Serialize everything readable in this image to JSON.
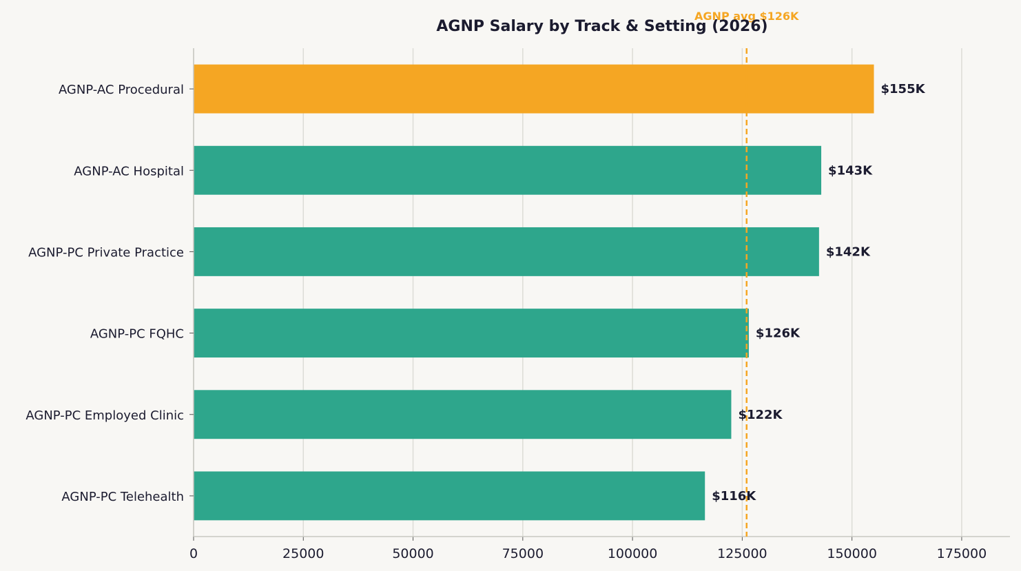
{
  "chart_data": {
    "type": "bar",
    "orientation": "horizontal",
    "title": "AGNP Salary by Track & Setting (2026)",
    "xlabel": "",
    "ylabel": "",
    "xlim": [
      0,
      186000
    ],
    "x_ticks": [
      0,
      25000,
      50000,
      75000,
      100000,
      125000,
      150000,
      175000
    ],
    "grid": "vertical",
    "legend": "none",
    "categories": [
      "AGNP-AC Procedural",
      "AGNP-AC Hospital",
      "AGNP-PC Private Practice",
      "AGNP-PC FQHC",
      "AGNP-PC Employed Clinic",
      "AGNP-PC Telehealth"
    ],
    "values": [
      155000,
      143000,
      142500,
      126500,
      122500,
      116500
    ],
    "data_labels": [
      "$155K",
      "$143K",
      "$142K",
      "$126K",
      "$122K",
      "$116K"
    ],
    "bar_colors": [
      "#f5a623",
      "#2ea68c",
      "#2ea68c",
      "#2ea68c",
      "#2ea68c",
      "#2ea68c"
    ],
    "reference_line": {
      "value": 126000,
      "label": "AGNP avg $126K",
      "color": "#f5a623",
      "style": "dashed"
    }
  }
}
